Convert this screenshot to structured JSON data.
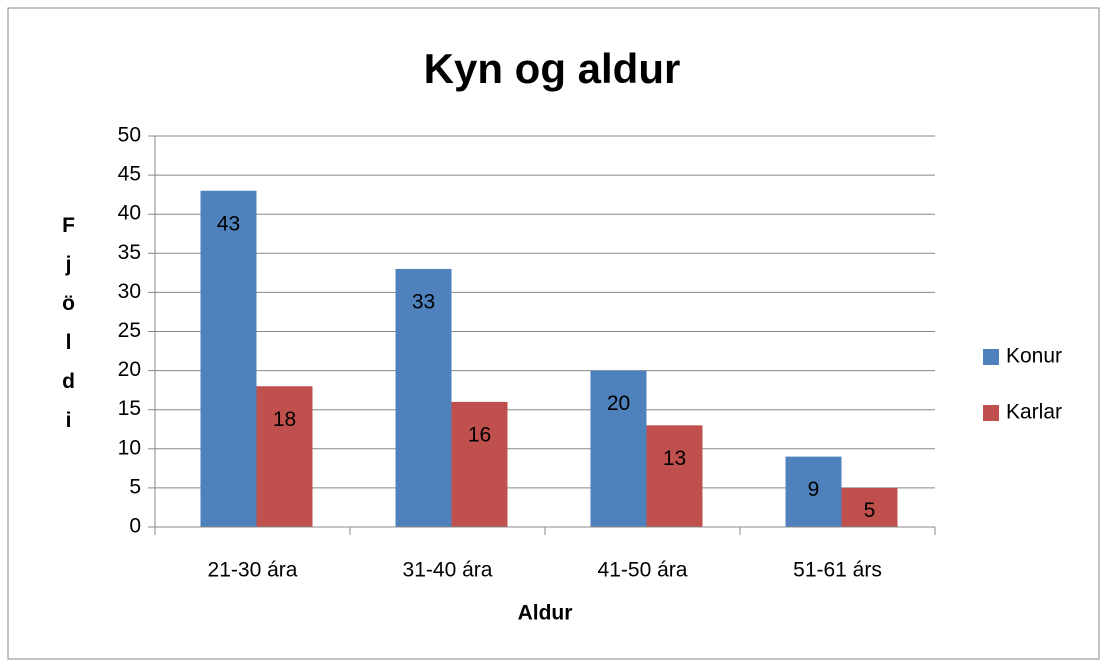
{
  "chart_data": {
    "type": "bar",
    "title": "Kyn og aldur",
    "x_label": "Aldur",
    "y_label": "Fjöldi",
    "categories": [
      "21-30 ára",
      "31-40 ára",
      "41-50 ára",
      "51-61 árs"
    ],
    "series": [
      {
        "name": "Konur",
        "color": "#4f81bd",
        "values": [
          43,
          33,
          20,
          9
        ]
      },
      {
        "name": "Karlar",
        "color": "#c0504d",
        "values": [
          18,
          16,
          13,
          5
        ]
      }
    ],
    "ylim": [
      0,
      50
    ],
    "yticks": [
      0,
      5,
      10,
      15,
      20,
      25,
      30,
      35,
      40,
      45,
      50
    ],
    "grid": true,
    "legend": "right"
  }
}
